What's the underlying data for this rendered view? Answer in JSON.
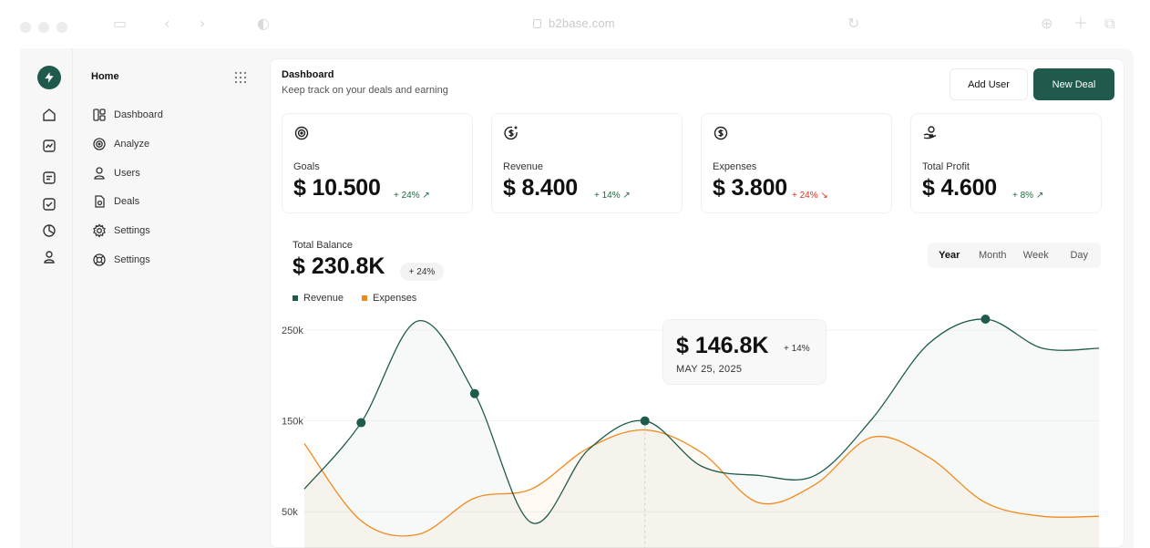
{
  "browser": {
    "url": "b2base.com",
    "icons": [
      "sidebar-toggle-icon",
      "back-icon",
      "forward-icon",
      "shield-icon",
      "reload-icon",
      "download-icon",
      "new-tab-icon",
      "tabs-icon"
    ]
  },
  "rail": {
    "logo_icon": "bolt-icon",
    "icons": [
      "home-icon",
      "chart-icon",
      "document-icon",
      "checkbox-icon",
      "pie-icon",
      "user-icon"
    ]
  },
  "sidebar": {
    "title": "Home",
    "items": [
      {
        "label": "Dashboard",
        "icon": "layout-icon"
      },
      {
        "label": "Analyze",
        "icon": "target-icon"
      },
      {
        "label": "Users",
        "icon": "user-icon"
      },
      {
        "label": "Deals",
        "icon": "file-icon"
      },
      {
        "label": "Settings",
        "icon": "gear-icon"
      },
      {
        "label": "Settings",
        "icon": "lifebuoy-icon"
      }
    ]
  },
  "header": {
    "title": "Dashboard",
    "subtitle": "Keep track on your deals and earning",
    "add_user_label": "Add User",
    "new_deal_label": "New Deal"
  },
  "cards": [
    {
      "label": "Goals",
      "value": "$ 10.500",
      "change": "+ 24%",
      "trend": "up",
      "icon": "target-icon"
    },
    {
      "label": "Revenue",
      "value": "$ 8.400",
      "change": "+ 14%",
      "trend": "up",
      "icon": "dollar-sparkle-icon"
    },
    {
      "label": "Expenses",
      "value": "$ 3.800",
      "change": "+ 24%",
      "trend": "down",
      "icon": "coin-dollar-icon"
    },
    {
      "label": "Total Profit",
      "value": "$ 4.600",
      "change": "+ 8%",
      "trend": "up",
      "icon": "hand-coin-icon"
    }
  ],
  "balance": {
    "label": "Total Balance",
    "value": "$ 230.8K",
    "change": "+ 24%",
    "periods": [
      "Year",
      "Month",
      "Week",
      "Day"
    ],
    "active_period": "Year",
    "tooltip": {
      "value": "$ 146.8K",
      "change": "+ 14%",
      "date": "MAY 25, 2025"
    }
  },
  "colors": {
    "accent": "#1f5a4c",
    "revenue": "#1f5a4c",
    "expenses": "#f08a1c",
    "up": "#1f6a3f",
    "down": "#d93025"
  },
  "chart_data": {
    "type": "line",
    "ytick_labels": [
      "250k",
      "150k",
      "50k"
    ],
    "ylim": [
      0,
      265
    ],
    "x": [
      0,
      1,
      2,
      3,
      4,
      5,
      6,
      7,
      8,
      9,
      10,
      11,
      12,
      13,
      14
    ],
    "highlight_x": [
      1,
      3,
      6,
      12
    ],
    "series": [
      {
        "name": "Revenue",
        "values": [
          75,
          148,
          260,
          180,
          38,
          118,
          150,
          100,
          90,
          90,
          152,
          235,
          262,
          230,
          230
        ]
      },
      {
        "name": "Expenses",
        "values": [
          125,
          40,
          25,
          65,
          75,
          120,
          140,
          115,
          60,
          80,
          132,
          110,
          60,
          45,
          45
        ]
      }
    ],
    "grid": true,
    "legend": "top-left"
  }
}
